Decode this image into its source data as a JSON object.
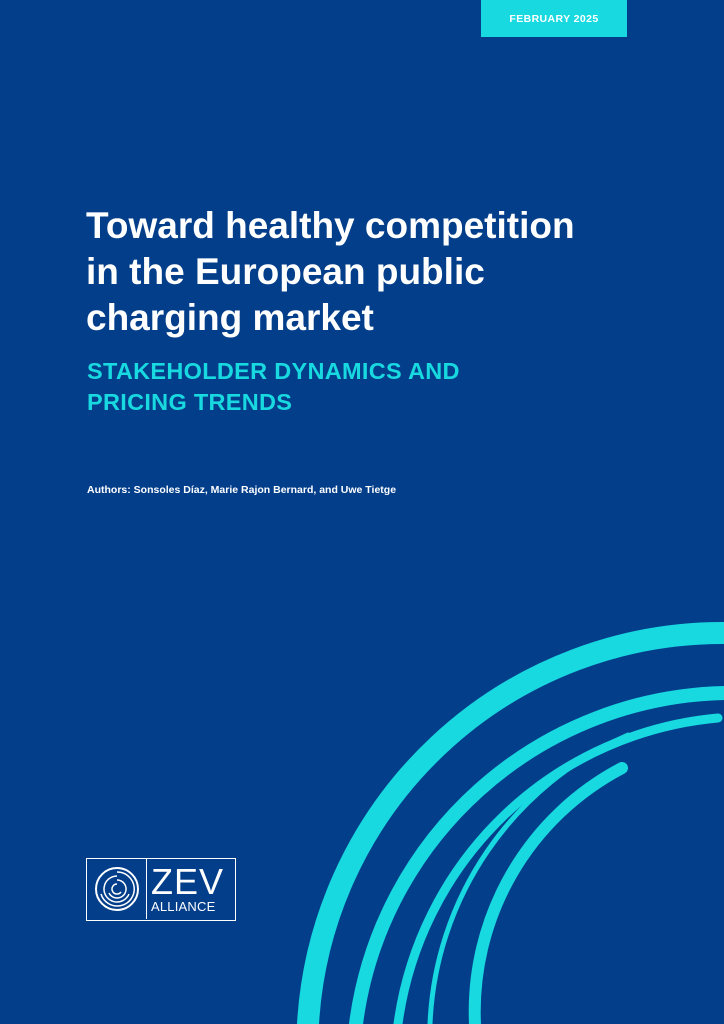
{
  "header": {
    "date_label": "FEBRUARY 2025"
  },
  "cover": {
    "title": "Toward healthy competition\nin the European public\ncharging market",
    "subtitle": "STAKEHOLDER DYNAMICS AND\nPRICING TRENDS",
    "authors": "Authors: Sonsoles Díaz, Marie Rajon Bernard, and Uwe Tietge"
  },
  "logo": {
    "word": "ZEV",
    "sub": "ALLIANCE",
    "icon": "concentric-circles-icon"
  },
  "colors": {
    "background": "#033e8b",
    "accent": "#18d8e0",
    "text": "#ffffff"
  }
}
